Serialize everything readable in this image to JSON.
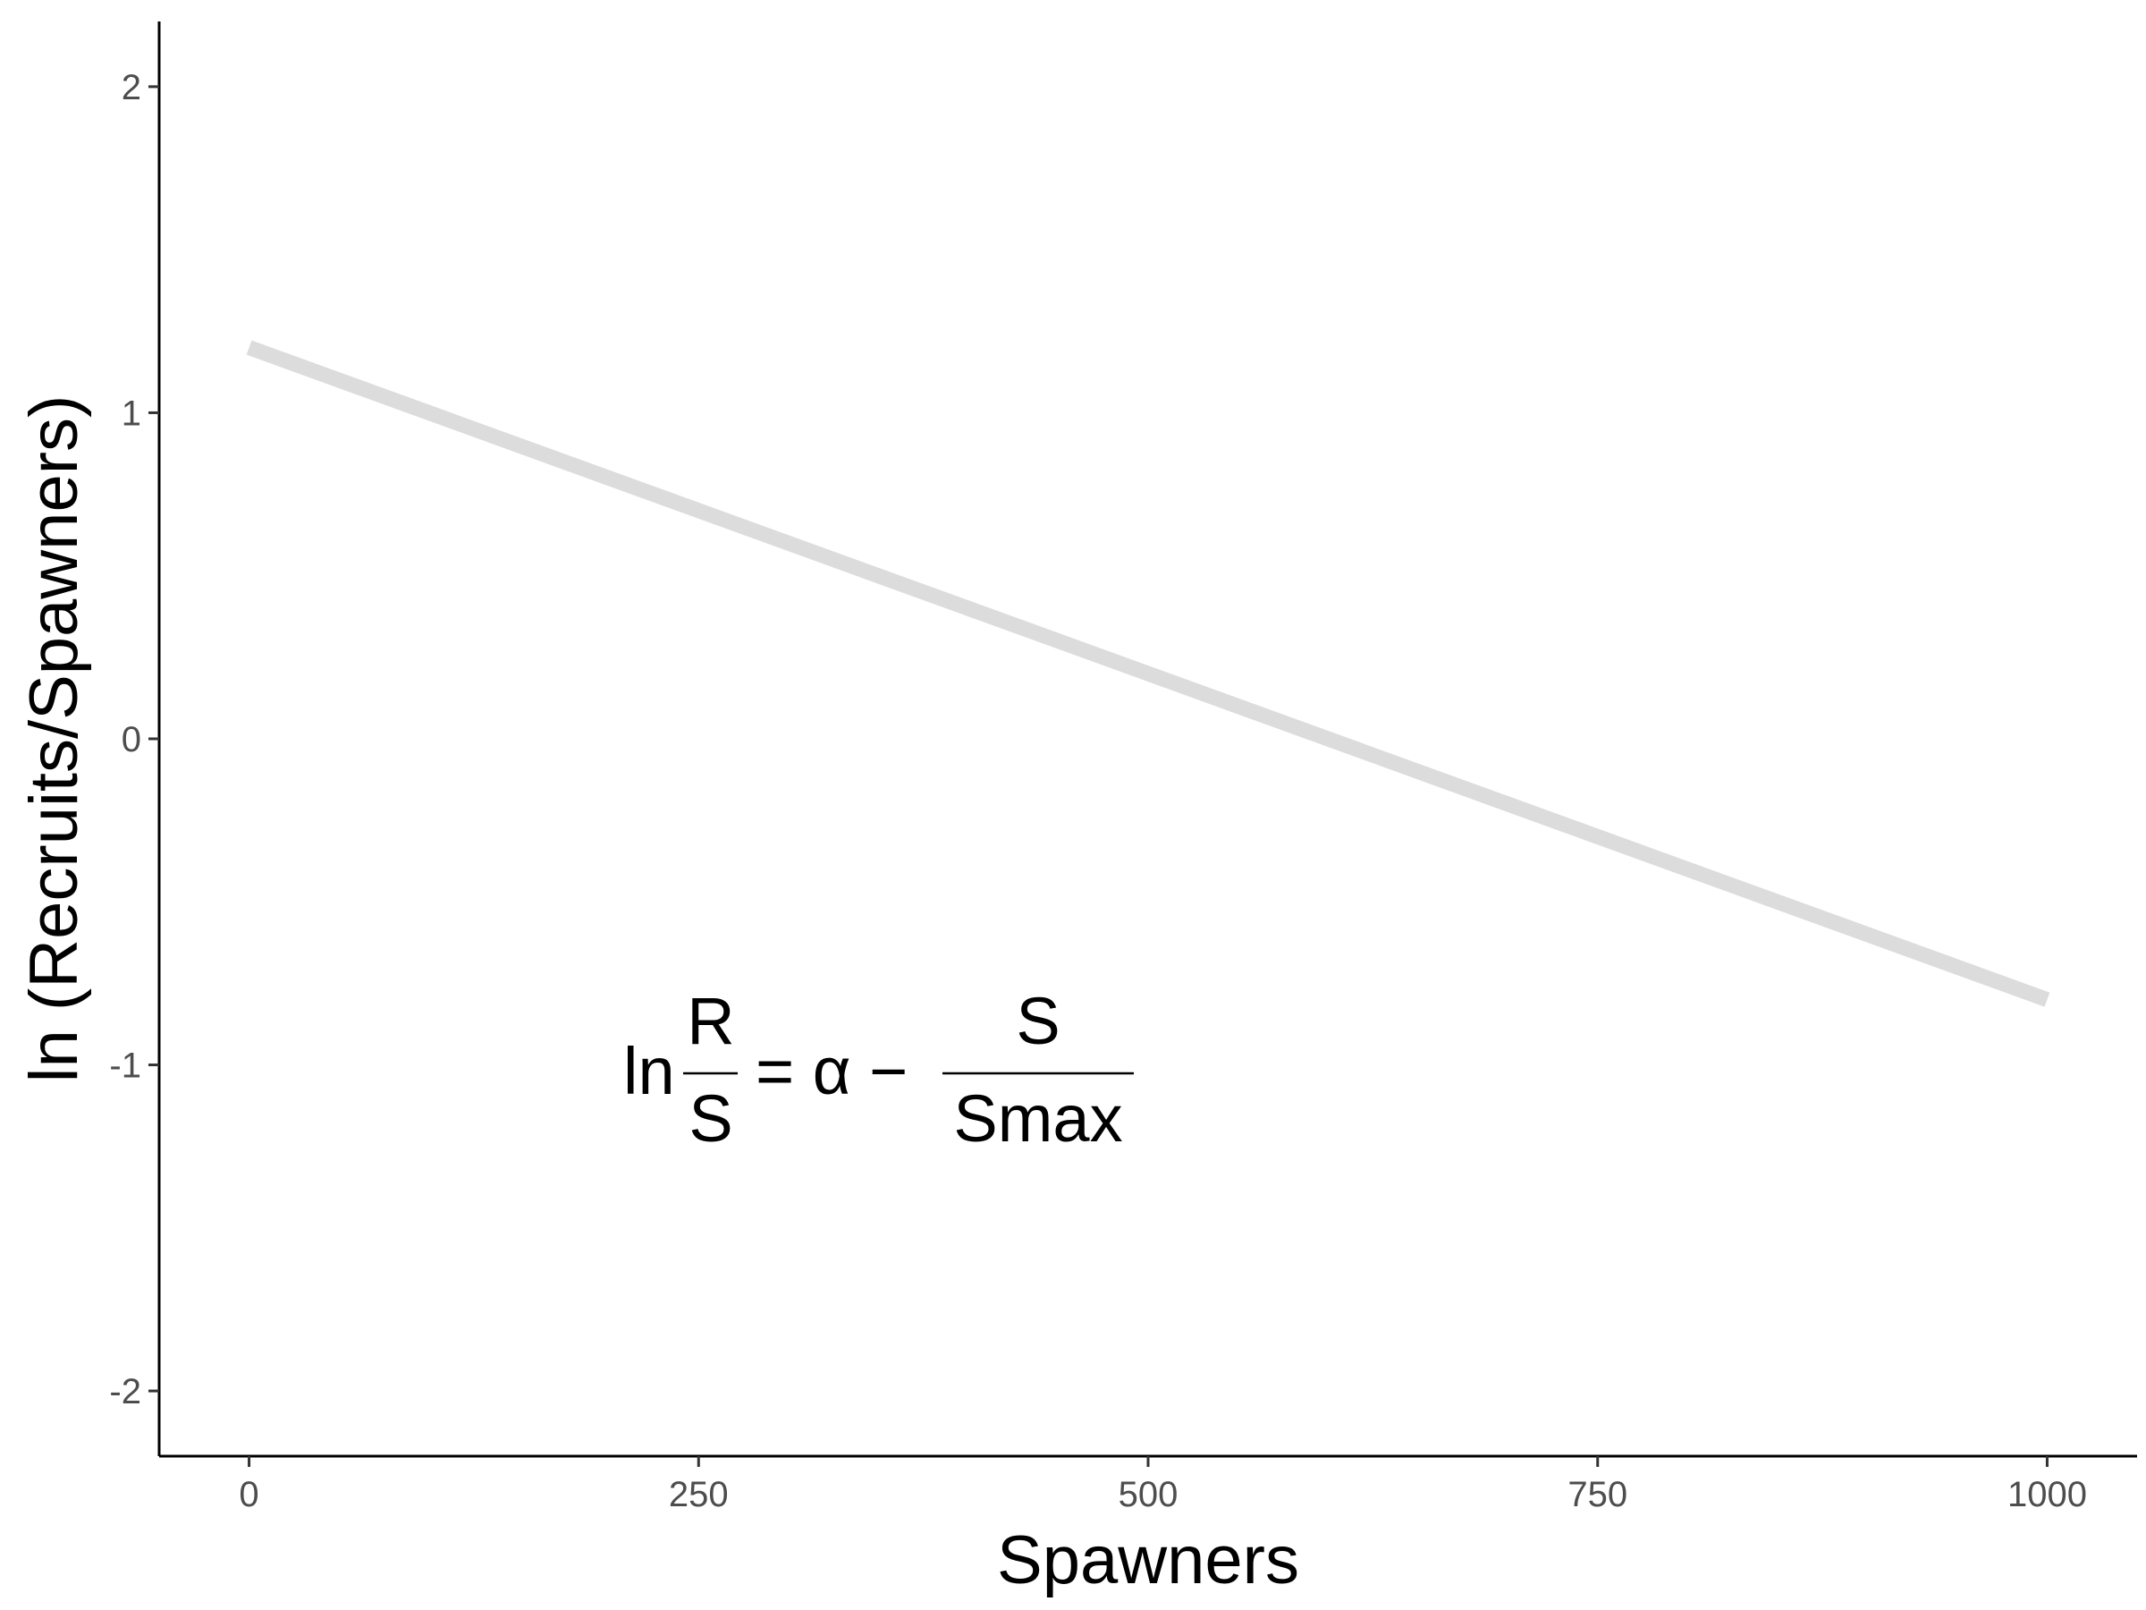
{
  "chart_data": {
    "type": "line",
    "title": "",
    "xlabel": "Spawners",
    "ylabel": "ln (Recruits/Spawners)",
    "xlim": [
      -50,
      1050
    ],
    "ylim": [
      -2.2,
      2.2
    ],
    "x_ticks": [
      0,
      250,
      500,
      750,
      1000
    ],
    "x_tick_labels": [
      "0",
      "250",
      "500",
      "750",
      "1000"
    ],
    "y_ticks": [
      -2,
      -1,
      0,
      1,
      2
    ],
    "y_tick_labels": [
      "-2",
      "-1",
      "0",
      "1",
      "2"
    ],
    "grid": false,
    "series": [
      {
        "x": [
          0,
          1000
        ],
        "values": [
          1.2,
          -0.8
        ],
        "color": "#dcdcdc"
      }
    ],
    "annotation": {
      "prefix": "ln",
      "frac1_num": "R",
      "frac1_den": "S",
      "middle": "= α −",
      "frac2_num": "S",
      "frac2_den": "Smax"
    }
  }
}
